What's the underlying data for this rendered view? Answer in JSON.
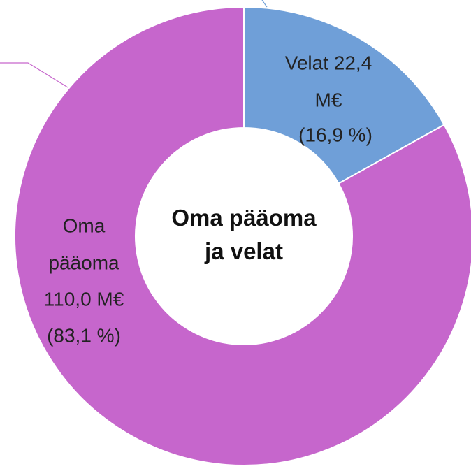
{
  "chart_data": {
    "type": "pie",
    "donut": true,
    "title": "Oma pääoma ja velat",
    "values": [
      22.4,
      110.0
    ],
    "value_labels": [
      [
        "Velat 22,4",
        "M€",
        "(16,9 %)"
      ],
      [
        "Oma",
        "pääoma",
        "110,0 M€",
        "(83,1 %)"
      ]
    ],
    "colors": [
      "#6f9fd8",
      "#c666cc"
    ]
  }
}
